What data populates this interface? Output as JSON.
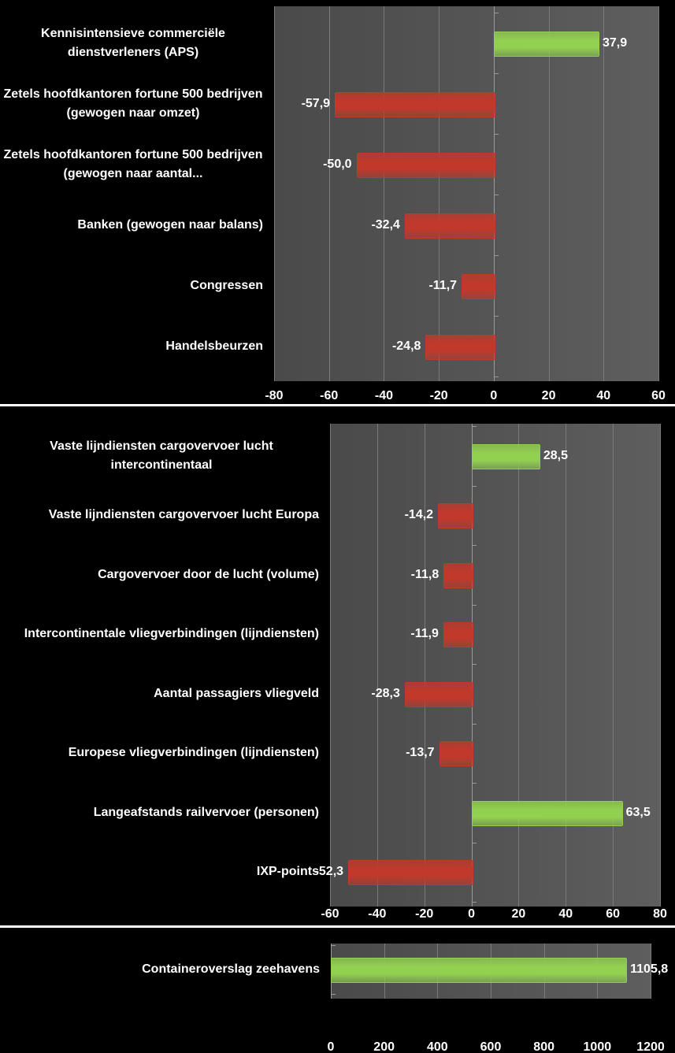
{
  "chart_data": [
    {
      "type": "bar",
      "orientation": "horizontal",
      "categories": [
        "Kennisintensieve commerciële dienstverleners (APS)",
        "Zetels hoofdkantoren fortune 500 bedrijven (gewogen naar omzet)",
        "Zetels hoofdkantoren fortune 500 bedrijven (gewogen naar aantal...",
        "Banken (gewogen naar balans)",
        "Congressen",
        "Handelsbeurzen"
      ],
      "values": [
        37.9,
        -57.9,
        -50.0,
        -32.4,
        -11.7,
        -24.8
      ],
      "value_labels": [
        "37,9",
        "-57,9",
        "-50,0",
        "-32,4",
        "-11,7",
        "-24,8"
      ],
      "colors": [
        "#92d050",
        "#c0392b",
        "#c0392b",
        "#c0392b",
        "#c0392b",
        "#c0392b"
      ],
      "xlim": [
        -80,
        60
      ],
      "xticks": [
        -80,
        -60,
        -40,
        -20,
        0,
        20,
        40,
        60
      ],
      "grid": true
    },
    {
      "type": "bar",
      "orientation": "horizontal",
      "categories": [
        "Vaste lijndiensten cargovervoer lucht intercontinentaal",
        "Vaste lijndiensten cargovervoer lucht Europa",
        "Cargovervoer door de lucht (volume)",
        "Intercontinentale vliegverbindingen (lijndiensten)",
        "Aantal passagiers vliegveld",
        "Europese vliegverbindingen (lijndiensten)",
        "Langeafstands railvervoer (personen)",
        "IXP-points"
      ],
      "values": [
        28.5,
        -14.2,
        -11.8,
        -11.9,
        -28.3,
        -13.7,
        63.5,
        -52.3
      ],
      "value_labels": [
        "28,5",
        "-14,2",
        "-11,8",
        "-11,9",
        "-28,3",
        "-13,7",
        "63,5",
        "-52,3"
      ],
      "colors": [
        "#92d050",
        "#c0392b",
        "#c0392b",
        "#c0392b",
        "#c0392b",
        "#c0392b",
        "#92d050",
        "#c0392b"
      ],
      "xlim": [
        -60,
        80
      ],
      "xticks": [
        -60,
        -40,
        -20,
        0,
        20,
        40,
        60,
        80
      ],
      "grid": true
    },
    {
      "type": "bar",
      "orientation": "horizontal",
      "categories": [
        "Containeroverslag zeehavens"
      ],
      "values": [
        1105.8
      ],
      "value_labels": [
        "1105,8"
      ],
      "colors": [
        "#92d050"
      ],
      "xlim": [
        0,
        1200
      ],
      "xticks": [
        0,
        200,
        400,
        600,
        800,
        1000,
        1200
      ],
      "grid": true
    }
  ]
}
